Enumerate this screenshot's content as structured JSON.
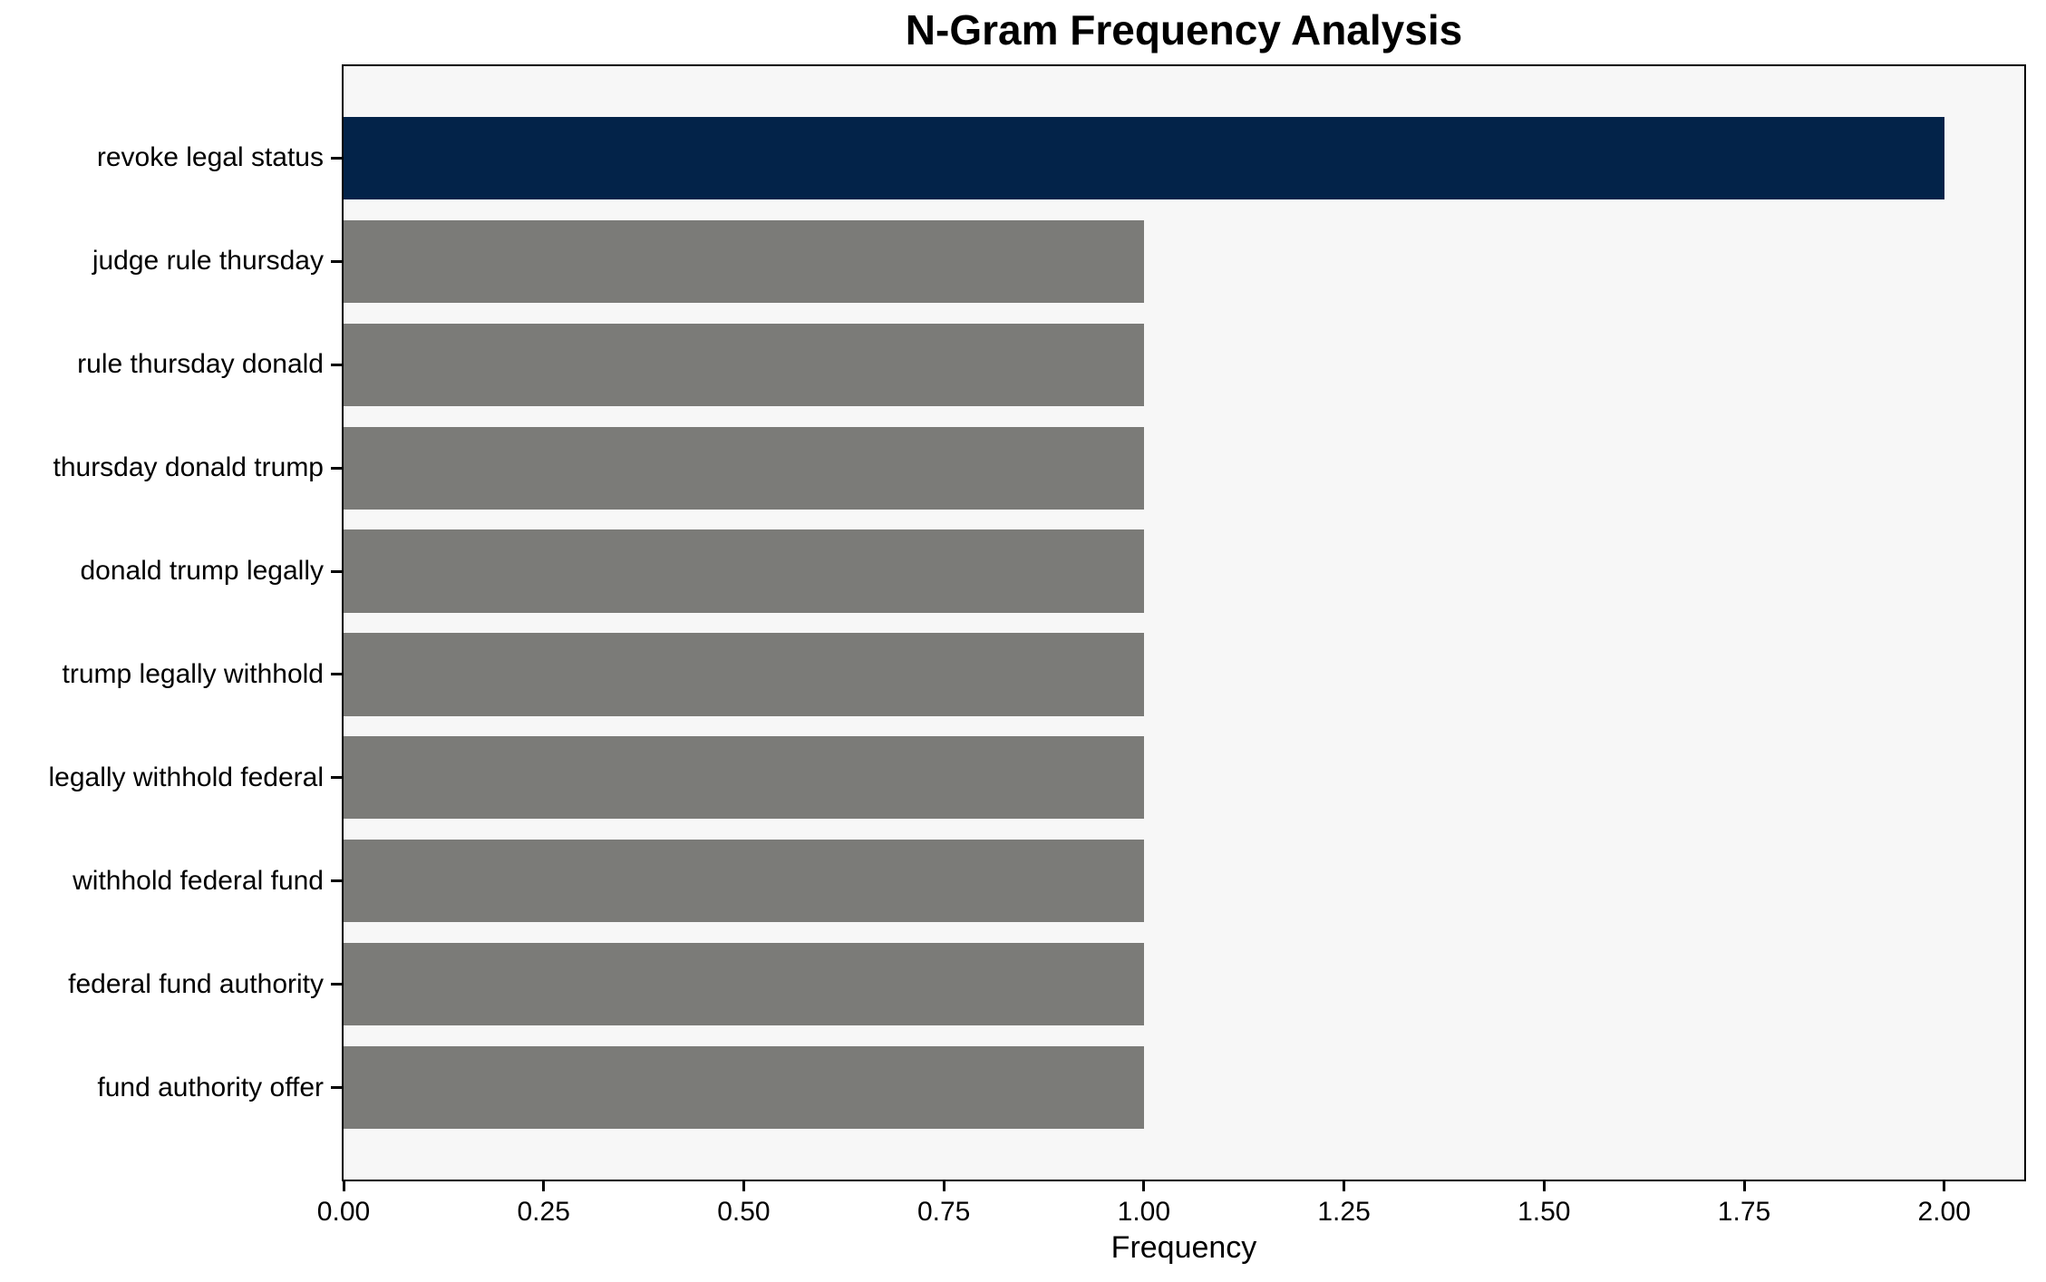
{
  "chart_data": {
    "type": "bar",
    "orientation": "horizontal",
    "title": "N-Gram Frequency Analysis",
    "xlabel": "Frequency",
    "ylabel": "",
    "categories": [
      "revoke legal status",
      "judge rule thursday",
      "rule thursday donald",
      "thursday donald trump",
      "donald trump legally",
      "trump legally withhold",
      "legally withhold federal",
      "withhold federal fund",
      "federal fund authority",
      "fund authority offer"
    ],
    "values": [
      2,
      1,
      1,
      1,
      1,
      1,
      1,
      1,
      1,
      1
    ],
    "bar_colors": [
      "#032349",
      "#7b7b78",
      "#7b7b78",
      "#7b7b78",
      "#7b7b78",
      "#7b7b78",
      "#7b7b78",
      "#7b7b78",
      "#7b7b78",
      "#7b7b78"
    ],
    "highlight_color": "#032349",
    "default_bar_color": "#7b7b78",
    "xlim": [
      0,
      2.1
    ],
    "xticks": [
      0,
      0.25,
      0.5,
      0.75,
      1.0,
      1.25,
      1.5,
      1.75,
      2.0
    ],
    "xtick_labels": [
      "0.00",
      "0.25",
      "0.50",
      "0.75",
      "1.00",
      "1.25",
      "1.50",
      "1.75",
      "2.00"
    ],
    "grid": false,
    "legend": null,
    "plot_background": "#f7f7f7",
    "figure_background": "#ffffff"
  }
}
